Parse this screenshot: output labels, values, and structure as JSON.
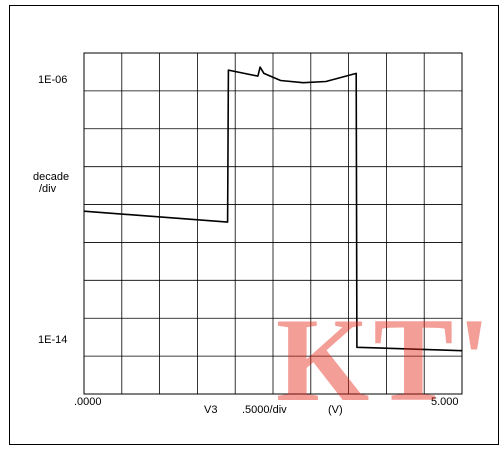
{
  "chart_data": {
    "type": "line",
    "x_scale": "linear",
    "y_scale": "log",
    "grid": true,
    "xlim": [
      0,
      5.0
    ],
    "ylim": [
      1e-16,
      1e-05
    ],
    "x_ticks": {
      "start": ".0000",
      "end": "5.000"
    },
    "x_axis_label": {
      "variable": "V3",
      "scale": ".5000/div",
      "unit": "(V)"
    },
    "y_ticks": {
      "top": "1E-06",
      "bottom": "1E-14"
    },
    "y_axis_label": {
      "line1": "decade",
      "line2": "/div"
    },
    "series": [
      {
        "color": "#000000",
        "points": [
          [
            0.0,
            7.9e-11
          ],
          [
            1.9,
            3.5e-11
          ],
          [
            1.91,
            2.8e-06
          ],
          [
            2.3,
            1.8e-06
          ],
          [
            2.33,
            3.5e-06
          ],
          [
            2.38,
            2.2e-06
          ],
          [
            2.6,
            1.3e-06
          ],
          [
            2.9,
            1.1e-06
          ],
          [
            3.2,
            1.2e-06
          ],
          [
            3.6,
            2.2e-06
          ],
          [
            3.61,
            3.2e-15
          ],
          [
            5.0,
            2.5e-15
          ]
        ]
      }
    ]
  },
  "watermark": "KT'"
}
